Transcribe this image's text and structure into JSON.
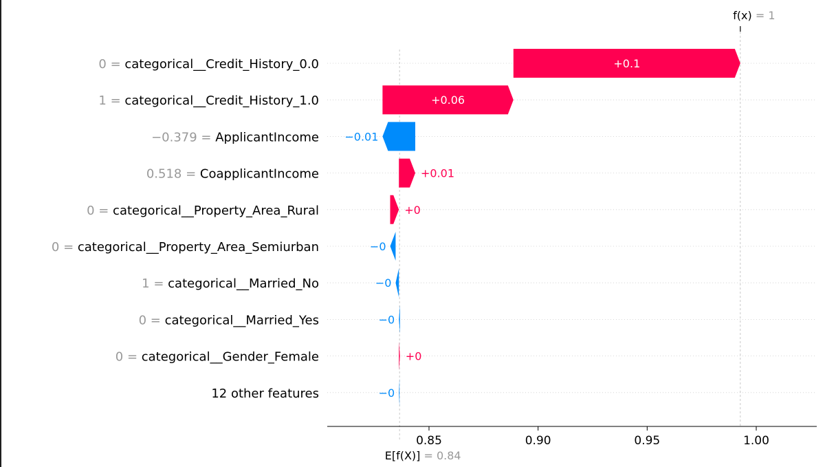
{
  "chart_data": {
    "type": "waterfall",
    "fx": {
      "label": "f(x)",
      "equals": " = ",
      "value": "1",
      "numeric": 1.0
    },
    "base": {
      "label": "E[f(X)]",
      "equals": " = ",
      "value": "0.84",
      "numeric": 0.8365
    },
    "x_axis": {
      "xlim": [
        0.81,
        1.03
      ],
      "ticks": [
        0.85,
        0.9,
        0.95,
        1.0
      ],
      "tick_labels": [
        "0.85",
        "0.90",
        "0.95",
        "1.00"
      ]
    },
    "features": [
      {
        "value": "0",
        "name": "categorical__Credit_History_0.0",
        "shap": 0.104,
        "label": "+0.1"
      },
      {
        "value": "1",
        "name": "categorical__Credit_History_1.0",
        "shap": 0.06,
        "label": "+0.06"
      },
      {
        "value": "−0.379",
        "name": "ApplicantIncome",
        "shap": -0.015,
        "label": "−0.01"
      },
      {
        "value": "0.518",
        "name": "CoapplicantIncome",
        "shap": 0.0075,
        "label": "+0.01"
      },
      {
        "value": "0",
        "name": "categorical__Property_Area_Rural",
        "shap": 0.004,
        "label": "+0"
      },
      {
        "value": "0",
        "name": "categorical__Property_Area_Semiurban",
        "shap": -0.0025,
        "label": "−0"
      },
      {
        "value": "1",
        "name": "categorical__Married_No",
        "shap": -0.0015,
        "label": "−0"
      },
      {
        "value": "0",
        "name": "categorical__Married_Yes",
        "shap": -0.0005,
        "label": "−0"
      },
      {
        "value": "0",
        "name": "categorical__Gender_Female",
        "shap": 0.0005,
        "label": "+0"
      },
      {
        "value": "",
        "name": "12 other features",
        "shap": -0.0003,
        "label": "−0"
      }
    ],
    "colors": {
      "positive": "#ff0051",
      "negative": "#008bfb",
      "grid": "#cccccc"
    }
  }
}
